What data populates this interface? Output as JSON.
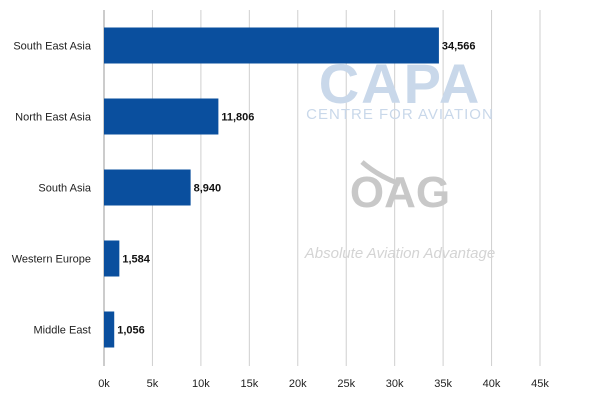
{
  "chart_data": {
    "type": "bar",
    "orientation": "horizontal",
    "categories": [
      "South East Asia",
      "North East Asia",
      "South Asia",
      "Western Europe",
      "Middle East"
    ],
    "values": [
      34566,
      11806,
      8940,
      1584,
      1056
    ],
    "value_labels": [
      "34,566",
      "11,806",
      "8,940",
      "1,584",
      "1,056"
    ],
    "xlim": [
      0,
      45000
    ],
    "xticks": [
      0,
      5000,
      10000,
      15000,
      20000,
      25000,
      30000,
      35000,
      40000,
      45000
    ],
    "xtick_labels": [
      "0k",
      "5k",
      "10k",
      "15k",
      "20k",
      "25k",
      "30k",
      "35k",
      "40k",
      "45k"
    ],
    "grid": "vertical",
    "bar_color": "#0a4f9e"
  },
  "watermarks": {
    "capa": "CAPA",
    "capa_sub": "CENTRE FOR AVIATION",
    "oag": "OAG",
    "oag_sub": "Absolute Aviation Advantage"
  }
}
